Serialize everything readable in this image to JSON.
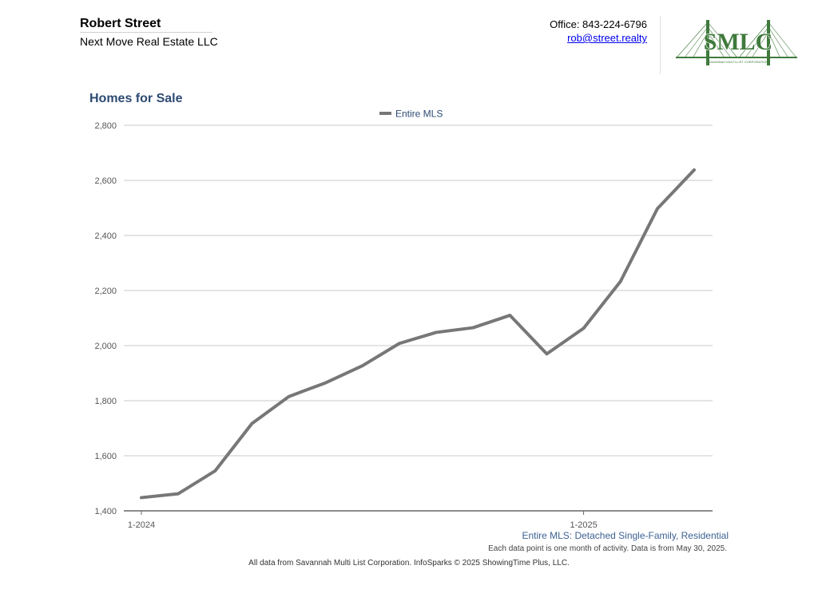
{
  "header": {
    "agent_name": "Robert Street",
    "company": "Next Move Real Estate LLC",
    "office_phone": "Office: 843-224-6796",
    "email": "rob@street.realty",
    "logo": {
      "icon": "smlc-bridge-logo",
      "text": "SMLC",
      "subtext": "SAVANNAH MULTI-LIST CORPORATION",
      "color": "#3f7a3c"
    }
  },
  "chart_data": {
    "type": "line",
    "title": "Homes for Sale",
    "ylim": [
      1400,
      2800
    ],
    "y_ticks": [
      "1,400",
      "1,600",
      "1,800",
      "2,000",
      "2,200",
      "2,400",
      "2,600",
      "2,800"
    ],
    "x_tick_labels": [
      {
        "index": 0,
        "label": "1-2024"
      },
      {
        "index": 12,
        "label": "1-2025"
      }
    ],
    "legend": {
      "placement": "top-center"
    },
    "grid": true,
    "series": [
      {
        "name": "Entire MLS",
        "color": "#777777",
        "values": [
          1448,
          1462,
          1545,
          1717,
          1815,
          1865,
          1927,
          2008,
          2048,
          2065,
          2110,
          1970,
          2063,
          2233,
          2497,
          2638
        ]
      }
    ]
  },
  "footer": {
    "series_caption": "Entire MLS: Detached Single-Family, Residential",
    "note": "Each data point is one month of activity. Data is from May 30, 2025.",
    "credits": "All data from Savannah Multi List Corporation. InfoSparks © 2025 ShowingTime Plus, LLC."
  }
}
